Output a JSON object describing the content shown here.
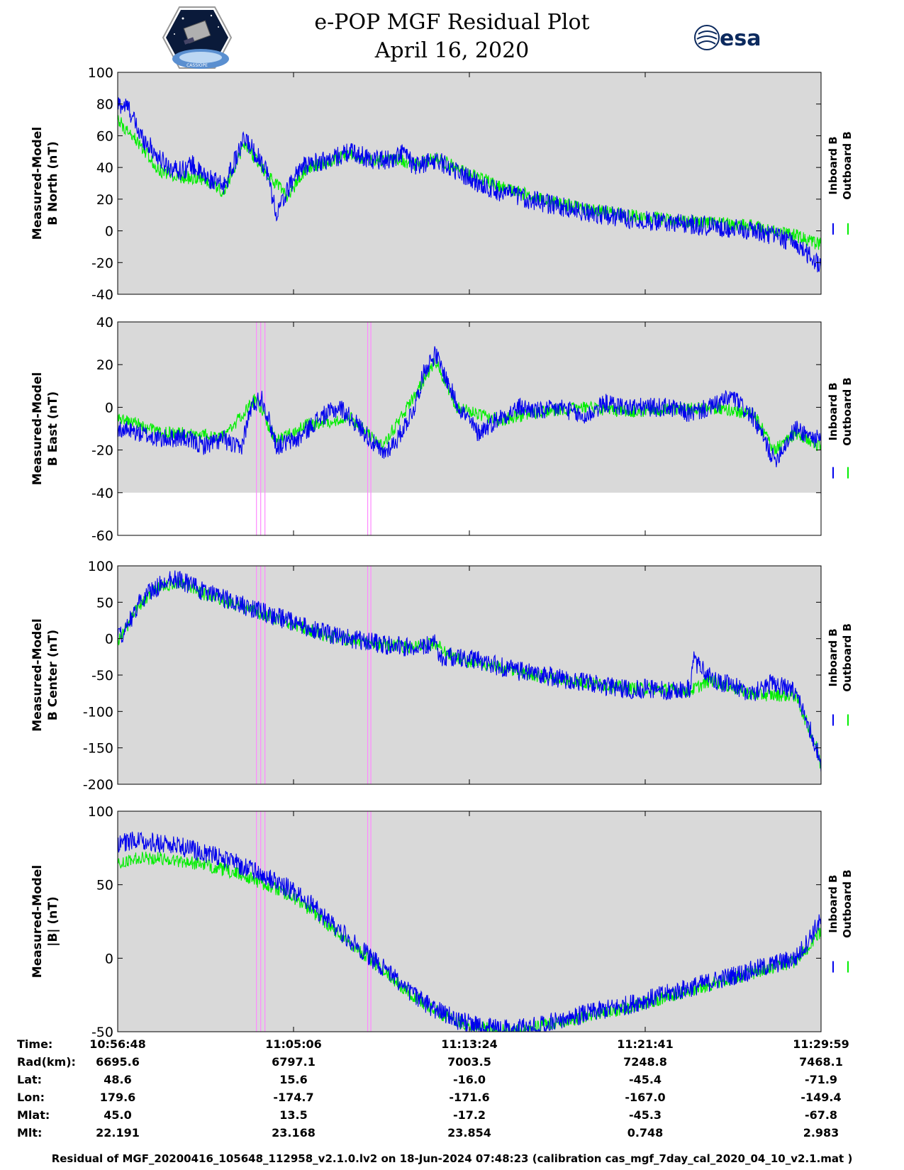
{
  "header": {
    "title_line1": "e-POP MGF Residual Plot",
    "title_line2": "April 16, 2020",
    "logo_left_text": "CASSIOPE",
    "logo_right_text": "esa"
  },
  "legend": {
    "inboard": "Inboard B",
    "outboard": "Outboard B",
    "inboard_color": "#0000ee",
    "outboard_color": "#00ee00"
  },
  "colors": {
    "plot_background": "#d9d9d9",
    "marker_lines": "#ff88ff"
  },
  "chart_data": [
    {
      "type": "line",
      "ylabel_line1": "Measured-Model",
      "ylabel_line2": "B North (nT)",
      "ylim": [
        -40,
        100
      ],
      "yticks": [
        "100",
        "80",
        "60",
        "40",
        "20",
        "0",
        "-20",
        "-40"
      ],
      "yticks_values": [
        100,
        80,
        60,
        40,
        20,
        0,
        -20,
        -40
      ],
      "series": [
        {
          "name": "Inboard B",
          "x": [
            0,
            0.5,
            1,
            2,
            2.5,
            3,
            3.5,
            4,
            5,
            6,
            7,
            7.5,
            8,
            8.5,
            9,
            10,
            11,
            12,
            13,
            13.5,
            14,
            15,
            16,
            17,
            18,
            20,
            22,
            24,
            26,
            28,
            30,
            31,
            32,
            33,
            33.2
          ],
          "values": [
            80,
            78,
            62,
            45,
            40,
            38,
            42,
            35,
            28,
            58,
            40,
            10,
            25,
            38,
            42,
            45,
            50,
            45,
            45,
            50,
            40,
            45,
            38,
            30,
            25,
            18,
            12,
            8,
            5,
            3,
            0,
            -3,
            -8,
            -20,
            -20
          ]
        },
        {
          "name": "Outboard B",
          "x": [
            0,
            1,
            2,
            3,
            4,
            5,
            6,
            7,
            8,
            9,
            10,
            11,
            12,
            13,
            14,
            15,
            16,
            18,
            20,
            22,
            24,
            26,
            28,
            30,
            32,
            33,
            33.2
          ],
          "values": [
            70,
            55,
            38,
            34,
            33,
            25,
            55,
            36,
            22,
            40,
            44,
            48,
            44,
            46,
            42,
            46,
            40,
            28,
            20,
            14,
            10,
            7,
            5,
            3,
            -3,
            -8,
            -8
          ]
        }
      ],
      "markers_x": []
    },
    {
      "type": "line",
      "ylabel_line1": "Measured-Model",
      "ylabel_line2": "B East (nT)",
      "ylim": [
        -60,
        40
      ],
      "yticks": [
        "40",
        "20",
        "0",
        "-20",
        "-40",
        "-60"
      ],
      "yticks_values": [
        40,
        20,
        0,
        -20,
        -40,
        -60
      ],
      "data_floor": -40,
      "series": [
        {
          "name": "Inboard B",
          "x": [
            0,
            1,
            2,
            3,
            4,
            5,
            5.8,
            6.3,
            6.8,
            7.5,
            8.5,
            9.5,
            10.5,
            11.5,
            12.5,
            13.2,
            14,
            14.5,
            15,
            16,
            17,
            18,
            19,
            20,
            21,
            22,
            23,
            24,
            25,
            26,
            27,
            28,
            29,
            30,
            30.5,
            31,
            32,
            33,
            33.2
          ],
          "values": [
            -10,
            -12,
            -15,
            -14,
            -18,
            -15,
            -20,
            0,
            5,
            -18,
            -15,
            -5,
            0,
            -10,
            -22,
            -15,
            0,
            18,
            25,
            2,
            -12,
            -5,
            0,
            -2,
            0,
            -5,
            2,
            0,
            0,
            0,
            -3,
            0,
            5,
            -5,
            -15,
            -25,
            -10,
            -15,
            -15
          ]
        },
        {
          "name": "Outboard B",
          "x": [
            0,
            1,
            2,
            3,
            5,
            6.5,
            7.5,
            9,
            11,
            12.5,
            14,
            15,
            16,
            18,
            20,
            22,
            24,
            26,
            28,
            30,
            31,
            32,
            33,
            33.2
          ],
          "values": [
            -5,
            -8,
            -12,
            -12,
            -14,
            4,
            -16,
            -8,
            -5,
            -18,
            5,
            22,
            0,
            -6,
            -2,
            0,
            -2,
            -1,
            0,
            -3,
            -20,
            -12,
            -18,
            -18
          ]
        }
      ],
      "markers_x": [
        6.55,
        6.75,
        6.95,
        11.8,
        11.95
      ]
    },
    {
      "type": "line",
      "ylabel_line1": "Measured-Model",
      "ylabel_line2": "B Center (nT)",
      "ylim": [
        -200,
        100
      ],
      "yticks": [
        "100",
        "50",
        "0",
        "-50",
        "-100",
        "-150",
        "-200"
      ],
      "yticks_values": [
        100,
        50,
        0,
        -50,
        -100,
        -150,
        -200
      ],
      "series": [
        {
          "name": "Inboard B",
          "x": [
            0,
            0.5,
            1,
            2,
            2.5,
            3,
            4,
            5,
            6,
            7,
            8,
            9,
            10,
            11,
            12,
            13,
            14,
            15,
            15.2,
            16,
            17,
            18,
            19,
            20,
            21,
            22,
            23,
            24,
            25,
            26,
            27,
            27.2,
            28,
            29,
            30,
            31,
            32,
            32.5,
            33,
            33.2
          ],
          "values": [
            0,
            20,
            50,
            75,
            85,
            80,
            65,
            55,
            45,
            35,
            25,
            15,
            5,
            0,
            -5,
            -10,
            -12,
            -5,
            -25,
            -25,
            -30,
            -38,
            -45,
            -50,
            -55,
            -60,
            -65,
            -70,
            -68,
            -72,
            -70,
            -30,
            -55,
            -65,
            -75,
            -60,
            -75,
            -110,
            -150,
            -180
          ]
        },
        {
          "name": "Outboard B",
          "x": [
            0,
            1,
            2,
            3,
            4,
            6,
            8,
            10,
            12,
            14,
            15,
            16,
            18,
            20,
            22,
            24,
            26,
            27,
            28,
            30,
            32,
            33,
            33.2
          ],
          "values": [
            -5,
            45,
            72,
            78,
            62,
            42,
            22,
            3,
            -7,
            -12,
            -7,
            -27,
            -40,
            -52,
            -60,
            -68,
            -70,
            -72,
            -57,
            -77,
            -78,
            -150,
            -178
          ]
        }
      ],
      "markers_x": [
        6.55,
        6.75,
        6.95,
        11.8,
        11.95
      ]
    },
    {
      "type": "line",
      "ylabel_line1": "Measured-Model",
      "ylabel_line2": "|B| (nT)",
      "ylim": [
        -50,
        100
      ],
      "yticks": [
        "100",
        "50",
        "0",
        "-50"
      ],
      "yticks_values": [
        100,
        50,
        0,
        -50
      ],
      "series": [
        {
          "name": "Inboard B",
          "x": [
            0,
            1,
            2,
            3,
            4,
            5,
            6,
            7,
            8,
            9,
            10,
            11,
            12,
            13,
            14,
            15,
            16,
            17,
            18,
            19,
            20,
            21,
            22,
            23,
            24,
            25,
            26,
            27,
            28,
            29,
            30,
            31,
            32,
            32.5,
            33,
            33.2
          ],
          "values": [
            78,
            80,
            78,
            76,
            72,
            68,
            62,
            55,
            48,
            38,
            25,
            12,
            0,
            -12,
            -25,
            -35,
            -42,
            -46,
            -48,
            -48,
            -45,
            -42,
            -38,
            -35,
            -32,
            -28,
            -24,
            -20,
            -16,
            -12,
            -8,
            -4,
            0,
            10,
            22,
            25
          ]
        },
        {
          "name": "Outboard B",
          "x": [
            0,
            1,
            2,
            3,
            4,
            5,
            6,
            7,
            8,
            9,
            10,
            11,
            12,
            13,
            14,
            15,
            16,
            17,
            18,
            19,
            20,
            21,
            22,
            23,
            24,
            25,
            26,
            27,
            28,
            29,
            30,
            31,
            32,
            32.5,
            33,
            33.2
          ],
          "values": [
            65,
            68,
            68,
            66,
            64,
            60,
            56,
            50,
            44,
            34,
            22,
            10,
            -2,
            -14,
            -26,
            -36,
            -43,
            -47,
            -49,
            -49,
            -46,
            -43,
            -40,
            -37,
            -34,
            -30,
            -26,
            -22,
            -18,
            -14,
            -10,
            -6,
            -2,
            6,
            16,
            18
          ]
        }
      ],
      "markers_x": [
        6.55,
        6.75,
        6.95,
        11.8,
        11.95
      ]
    }
  ],
  "xaxis": {
    "xlim": [
      0,
      33.2
    ],
    "tick_minutes": [
      0,
      8.3,
      16.6,
      24.9,
      33.2
    ]
  },
  "footer": {
    "rows": [
      {
        "label": "Time:",
        "values": [
          "10:56:48",
          "11:05:06",
          "11:13:24",
          "11:21:41",
          "11:29:59"
        ]
      },
      {
        "label": "Rad(km):",
        "values": [
          "6695.6",
          "6797.1",
          "7003.5",
          "7248.8",
          "7468.1"
        ]
      },
      {
        "label": "Lat:",
        "values": [
          "48.6",
          "15.6",
          "-16.0",
          "-45.4",
          "-71.9"
        ]
      },
      {
        "label": "Lon:",
        "values": [
          "179.6",
          "-174.7",
          "-171.6",
          "-167.0",
          "-149.4"
        ]
      },
      {
        "label": "Mlat:",
        "values": [
          "45.0",
          "13.5",
          "-17.2",
          "-45.3",
          "-67.8"
        ]
      },
      {
        "label": "Mlt:",
        "values": [
          "22.191",
          "23.168",
          "23.854",
          "0.748",
          "2.983"
        ]
      }
    ],
    "caption": "Residual of MGF_20200416_105648_112958_v2.1.0.lv2 on 18-Jun-2024 07:48:23 (calibration cas_mgf_7day_cal_2020_04_10_v2.1.mat )"
  }
}
